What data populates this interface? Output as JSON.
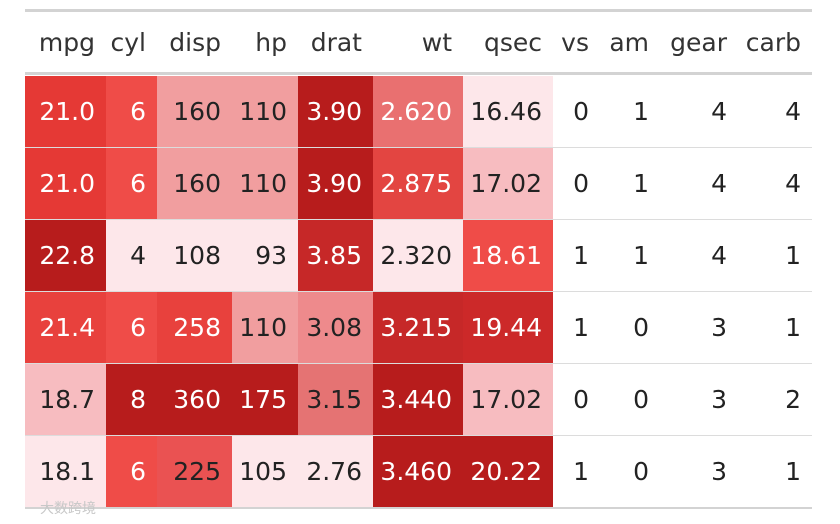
{
  "table": {
    "header": [
      "mpg",
      "cyl",
      "disp",
      "hp",
      "drat",
      "wt",
      "qsec",
      "vs",
      "am",
      "gear",
      "carb"
    ],
    "rows": [
      {
        "cells": [
          "21.0",
          "6",
          "160",
          "110",
          "3.90",
          "2.620",
          "16.46",
          "0",
          "1",
          "4",
          "4"
        ],
        "fills": [
          "#e53935",
          "#ef4c48",
          "#f19e9f",
          "#f19e9f",
          "#b71c1c",
          "#e97070",
          "#fde7ea",
          null,
          null,
          null,
          null
        ],
        "inks": [
          "#fff",
          "#fff",
          "#222",
          "#222",
          "#fff",
          "#fff",
          "#222",
          "#222",
          "#222",
          "#222",
          "#222"
        ]
      },
      {
        "cells": [
          "21.0",
          "6",
          "160",
          "110",
          "3.90",
          "2.875",
          "17.02",
          "0",
          "1",
          "4",
          "4"
        ],
        "fills": [
          "#e53935",
          "#ef4c48",
          "#f19e9f",
          "#f19e9f",
          "#b71c1c",
          "#e34541",
          "#f7bcc0",
          null,
          null,
          null,
          null
        ],
        "inks": [
          "#fff",
          "#fff",
          "#222",
          "#222",
          "#fff",
          "#fff",
          "#222",
          "#222",
          "#222",
          "#222",
          "#222"
        ]
      },
      {
        "cells": [
          "22.8",
          "4",
          "108",
          "93",
          "3.85",
          "2.320",
          "18.61",
          "1",
          "1",
          "4",
          "1"
        ],
        "fills": [
          "#b71c1c",
          "#fde7ea",
          "#fde7ea",
          "#fde7ea",
          "#c62828",
          "#fde7ea",
          "#ef4c48",
          null,
          null,
          null,
          null
        ],
        "inks": [
          "#fff",
          "#222",
          "#222",
          "#222",
          "#fff",
          "#222",
          "#fff",
          "#222",
          "#222",
          "#222",
          "#222"
        ]
      },
      {
        "cells": [
          "21.4",
          "6",
          "258",
          "110",
          "3.08",
          "3.215",
          "19.44",
          "1",
          "0",
          "3",
          "1"
        ],
        "fills": [
          "#e8413d",
          "#ef4c48",
          "#e8413d",
          "#f19e9f",
          "#ee8a8c",
          "#c62828",
          "#cc2929",
          null,
          null,
          null,
          null
        ],
        "inks": [
          "#fff",
          "#fff",
          "#fff",
          "#222",
          "#222",
          "#fff",
          "#fff",
          "#222",
          "#222",
          "#222",
          "#222"
        ]
      },
      {
        "cells": [
          "18.7",
          "8",
          "360",
          "175",
          "3.15",
          "3.440",
          "17.02",
          "0",
          "0",
          "3",
          "2"
        ],
        "fills": [
          "#f7bcc0",
          "#b71c1c",
          "#b71c1c",
          "#b71c1c",
          "#e57373",
          "#b71c1c",
          "#f7bcc0",
          null,
          null,
          null,
          null
        ],
        "inks": [
          "#222",
          "#fff",
          "#fff",
          "#fff",
          "#222",
          "#fff",
          "#222",
          "#222",
          "#222",
          "#222",
          "#222"
        ]
      },
      {
        "cells": [
          "18.1",
          "6",
          "225",
          "105",
          "2.76",
          "3.460",
          "20.22",
          "1",
          "0",
          "3",
          "1"
        ],
        "fills": [
          "#fde7ea",
          "#ef4c48",
          "#ea5252",
          "#fde7ea",
          "#fde7ea",
          "#b71c1c",
          "#b71c1c",
          null,
          null,
          null,
          null
        ],
        "inks": [
          "#222",
          "#fff",
          "#222",
          "#222",
          "#222",
          "#fff",
          "#fff",
          "#222",
          "#222",
          "#222",
          "#222"
        ]
      }
    ]
  },
  "watermark": "大数跨境"
}
